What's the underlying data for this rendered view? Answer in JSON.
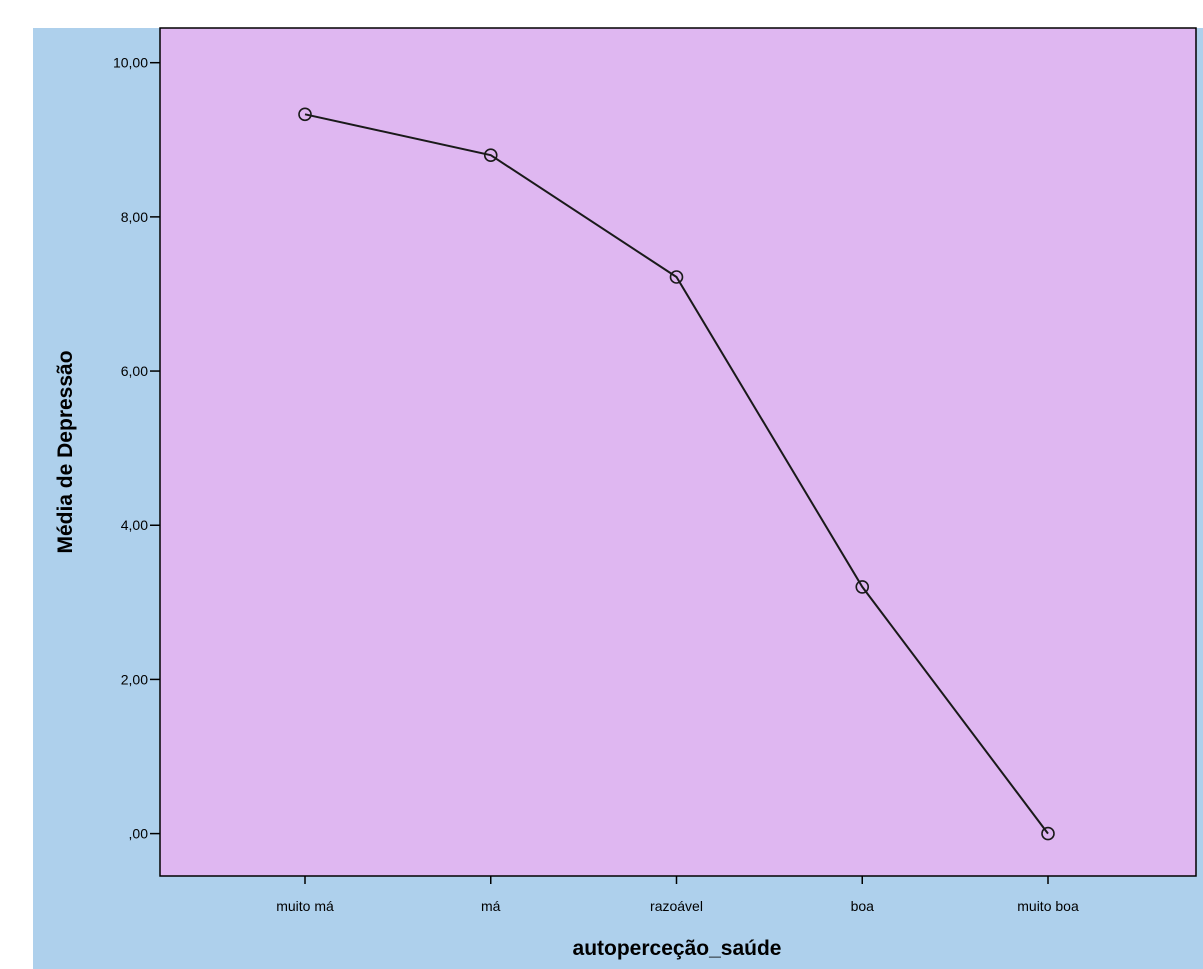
{
  "colors": {
    "outer_background": "#aed0ec",
    "plot_background": "#dfb7f1",
    "line": "#1a1a1a",
    "marker": "#1a1a1a"
  },
  "chart_data": {
    "type": "line",
    "title": "",
    "xlabel": "autoperceção_saúde",
    "ylabel": "Média de Depressão",
    "categories": [
      "muito má",
      "má",
      "razoável",
      "boa",
      "muito boa"
    ],
    "series": [
      {
        "values": [
          9.33,
          8.8,
          7.22,
          3.2,
          0.0
        ]
      }
    ],
    "ylim": [
      -0.55,
      10.45
    ],
    "yticks": [
      0,
      2,
      4,
      6,
      8,
      10
    ],
    "ytick_labels": [
      ",00",
      "2,00",
      "4,00",
      "6,00",
      "8,00",
      "10,00"
    ],
    "grid": false,
    "marker": "hollow-circle",
    "legend": "none"
  }
}
